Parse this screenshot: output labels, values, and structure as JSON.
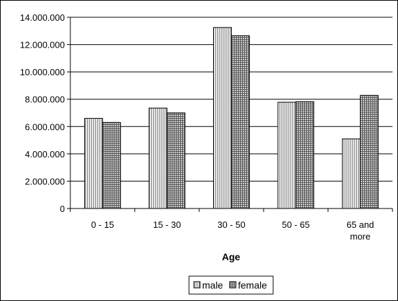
{
  "chart_data": {
    "type": "bar",
    "title": "",
    "xlabel": "Age",
    "ylabel": "",
    "categories": [
      [
        "0 - 15"
      ],
      [
        "15 - 30"
      ],
      [
        "30 - 50"
      ],
      [
        "50 - 65"
      ],
      [
        "65 and",
        "more"
      ]
    ],
    "series": [
      {
        "name": "male",
        "values": [
          6600000,
          7350000,
          13250000,
          7780000,
          5100000
        ],
        "pattern": "vertical-stripes",
        "color": "#d9d9d9"
      },
      {
        "name": "female",
        "values": [
          6300000,
          7000000,
          12650000,
          7820000,
          8280000
        ],
        "pattern": "crosshatch",
        "color": "#a6a6a6"
      }
    ],
    "ylim": [
      0,
      14000000
    ],
    "yticks": [
      0,
      2000000,
      4000000,
      6000000,
      8000000,
      10000000,
      12000000,
      14000000
    ],
    "ytick_labels": [
      "0",
      "2.000.000",
      "4.000.000",
      "6.000.000",
      "8.000.000",
      "10.000.000",
      "12.000.000",
      "14.000.000"
    ],
    "grid": "horizontal",
    "legend": "bottom"
  }
}
